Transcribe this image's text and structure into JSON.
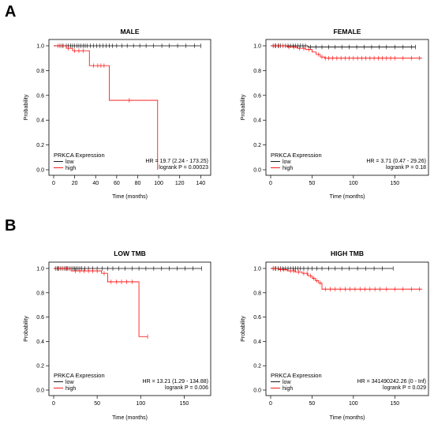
{
  "figure": {
    "panel_labels": [
      "A",
      "B"
    ]
  },
  "colors": {
    "low": "#000000",
    "high": "#ff0000",
    "frame": "#000000"
  },
  "chart_data": [
    {
      "type": "line",
      "title": "MALE",
      "xlabel": "Time (months)",
      "ylabel": "Probability",
      "xlim": [
        0,
        145
      ],
      "ylim": [
        0,
        1.0
      ],
      "xticks": [
        0,
        20,
        40,
        60,
        80,
        100,
        120,
        140
      ],
      "yticks": [
        0.0,
        0.2,
        0.4,
        0.6,
        0.8,
        1.0
      ],
      "legend": {
        "title": "PRKCA Expression",
        "position": "bottom-left"
      },
      "annotation": [
        "HR = 19.7 (2.24 - 173.25)",
        "logrank P = 0.00023"
      ],
      "series": [
        {
          "name": "low",
          "color": "#000000",
          "steps": [
            [
              0,
              1.0
            ],
            [
              140,
              1.0
            ]
          ],
          "censor": [
            6,
            9,
            12,
            14,
            16,
            18,
            20,
            22,
            24,
            26,
            28,
            30,
            32,
            35,
            38,
            41,
            44,
            47,
            50,
            53,
            56,
            60,
            65,
            70,
            76,
            82,
            88,
            95,
            103,
            110,
            118,
            126,
            134,
            140
          ]
        },
        {
          "name": "high",
          "color": "#ff0000",
          "steps": [
            [
              0,
              1.0
            ],
            [
              12,
              0.98
            ],
            [
              18,
              0.96
            ],
            [
              34,
              0.84
            ],
            [
              53,
              0.56
            ],
            [
              99,
              0.0
            ]
          ],
          "censor": [
            4,
            8,
            14,
            20,
            24,
            28,
            38,
            42,
            45,
            48,
            72
          ]
        }
      ]
    },
    {
      "type": "line",
      "title": "FEMALE",
      "xlabel": "Time (months)",
      "ylabel": "Probability",
      "xlim": [
        0,
        185
      ],
      "ylim": [
        0,
        1.0
      ],
      "xticks": [
        0,
        50,
        100,
        150
      ],
      "yticks": [
        0.0,
        0.2,
        0.4,
        0.6,
        0.8,
        1.0
      ],
      "legend": {
        "title": "PRKCA Expression",
        "position": "bottom-left"
      },
      "annotation": [
        "HR = 3.71 (0.47 - 29.26)",
        "logrank P = 0.18"
      ],
      "series": [
        {
          "name": "low",
          "color": "#000000",
          "steps": [
            [
              0,
              1.0
            ],
            [
              45,
              0.99
            ],
            [
              175,
              0.99
            ]
          ],
          "censor": [
            3,
            6,
            9,
            12,
            15,
            18,
            21,
            24,
            27,
            30,
            33,
            36,
            39,
            42,
            48,
            55,
            62,
            70,
            78,
            86,
            95,
            104,
            113,
            122,
            131,
            140,
            150,
            160,
            170,
            175
          ]
        },
        {
          "name": "high",
          "color": "#ff0000",
          "steps": [
            [
              0,
              1.0
            ],
            [
              20,
              0.99
            ],
            [
              32,
              0.98
            ],
            [
              42,
              0.97
            ],
            [
              50,
              0.95
            ],
            [
              55,
              0.93
            ],
            [
              60,
              0.91
            ],
            [
              65,
              0.9
            ],
            [
              183,
              0.9
            ]
          ],
          "censor": [
            5,
            10,
            15,
            22,
            28,
            35,
            40,
            46,
            58,
            62,
            66,
            70,
            75,
            80,
            85,
            90,
            95,
            100,
            105,
            110,
            115,
            120,
            125,
            130,
            135,
            140,
            145,
            150,
            160,
            170,
            180
          ]
        }
      ]
    },
    {
      "type": "line",
      "title": "LOW TMB",
      "xlabel": "Time (months)",
      "ylabel": "Probability",
      "xlim": [
        0,
        175
      ],
      "ylim": [
        0,
        1.0
      ],
      "xticks": [
        0,
        50,
        100,
        150
      ],
      "yticks": [
        0.0,
        0.2,
        0.4,
        0.6,
        0.8,
        1.0
      ],
      "legend": {
        "title": "PRKCA Expression",
        "position": "bottom-left"
      },
      "annotation": [
        "HR = 13.21 (1.29 - 134.88)",
        "logrank P = 0.006"
      ],
      "series": [
        {
          "name": "low",
          "color": "#000000",
          "steps": [
            [
              0,
              1.0
            ],
            [
              170,
              1.0
            ]
          ],
          "censor": [
            2,
            4,
            6,
            8,
            10,
            12,
            14,
            16,
            18,
            20,
            22,
            24,
            26,
            28,
            30,
            32,
            36,
            40,
            45,
            50,
            56,
            62,
            68,
            75,
            82,
            90,
            98,
            106,
            115,
            124,
            133,
            142,
            151,
            160,
            170
          ]
        },
        {
          "name": "high",
          "color": "#ff0000",
          "steps": [
            [
              0,
              1.0
            ],
            [
              20,
              0.98
            ],
            [
              55,
              0.96
            ],
            [
              62,
              0.89
            ],
            [
              98,
              0.44
            ],
            [
              108,
              0.44
            ]
          ],
          "censor": [
            5,
            10,
            15,
            25,
            30,
            35,
            40,
            45,
            50,
            58,
            66,
            72,
            78,
            84,
            90,
            108
          ]
        }
      ]
    },
    {
      "type": "line",
      "title": "HIGH TMB",
      "xlabel": "Time (months)",
      "ylabel": "Probability",
      "xlim": [
        0,
        185
      ],
      "ylim": [
        0,
        1.0
      ],
      "xticks": [
        0,
        50,
        100,
        150
      ],
      "yticks": [
        0.0,
        0.2,
        0.4,
        0.6,
        0.8,
        1.0
      ],
      "legend": {
        "title": "PRKCA Expression",
        "position": "bottom-left"
      },
      "annotation": [
        "HR = 341490242.26 (0 - Inf)",
        "logrank P = 0.029"
      ],
      "series": [
        {
          "name": "low",
          "color": "#000000",
          "steps": [
            [
              0,
              1.0
            ],
            [
              148,
              1.0
            ]
          ],
          "censor": [
            3,
            6,
            9,
            12,
            15,
            18,
            21,
            24,
            27,
            30,
            33,
            36,
            40,
            45,
            50,
            56,
            62,
            70,
            78,
            86,
            95,
            105,
            115,
            125,
            135,
            148
          ]
        },
        {
          "name": "high",
          "color": "#ff0000",
          "steps": [
            [
              0,
              1.0
            ],
            [
              10,
              0.99
            ],
            [
              20,
              0.98
            ],
            [
              30,
              0.97
            ],
            [
              38,
              0.96
            ],
            [
              45,
              0.94
            ],
            [
              50,
              0.92
            ],
            [
              54,
              0.9
            ],
            [
              58,
              0.88
            ],
            [
              62,
              0.83
            ],
            [
              183,
              0.83
            ]
          ],
          "censor": [
            5,
            12,
            16,
            24,
            28,
            34,
            40,
            44,
            48,
            52,
            56,
            60,
            66,
            72,
            78,
            84,
            90,
            96,
            102,
            108,
            114,
            120,
            126,
            132,
            140,
            150,
            160,
            170,
            180
          ]
        }
      ]
    }
  ]
}
